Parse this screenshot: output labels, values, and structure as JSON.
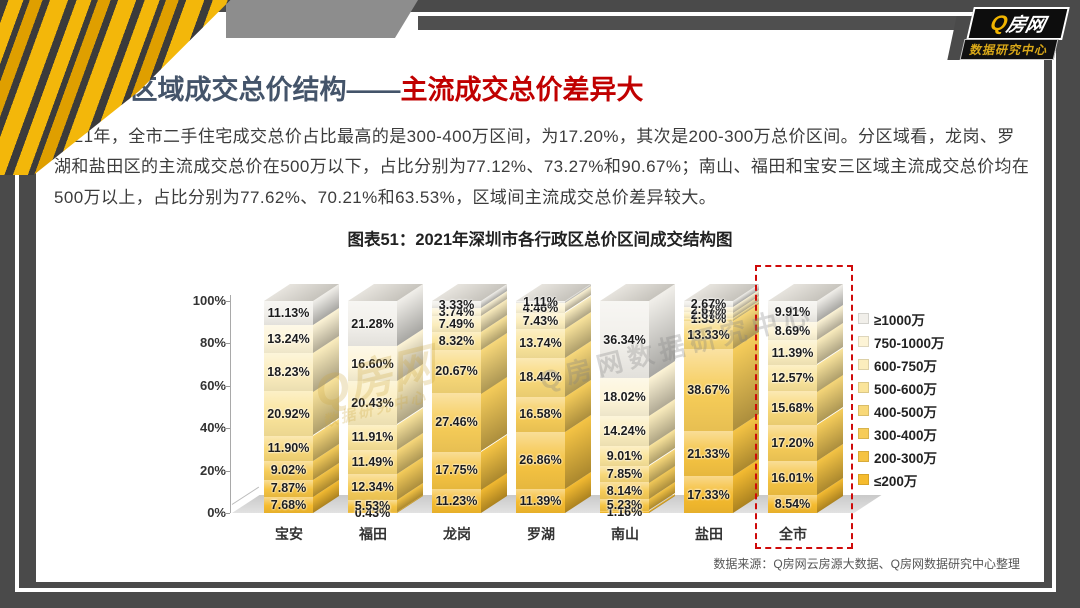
{
  "logo": {
    "q": "Q",
    "rest": "房网",
    "subtitle": "数据研究中心"
  },
  "header": {
    "title_dark": "4.8各区域成交总价结构——",
    "title_red": "主流成交总价差异大"
  },
  "paragraph": "2021年，全市二手住宅成交总价占比最高的是300-400万区间，为17.20%，其次是200-300万总价区间。分区域看，龙岗、罗湖和盐田区的主流成交总价在500万以下，占比分别为77.12%、73.27%和90.67%；南山、福田和宝安三区域主流成交总价均在500万以上，占比分别为77.62%、70.21%和63.53%，区域间主流成交总价差异较大。",
  "chart_data": {
    "type": "bar",
    "stacked": true,
    "title": "图表51：2021年深圳市各行政区总价区间成交结构图",
    "categories": [
      "宝安",
      "福田",
      "龙岗",
      "罗湖",
      "南山",
      "盐田",
      "全市"
    ],
    "series": [
      {
        "name": "≤200万",
        "color": "#f5bb2e",
        "values": [
          7.68,
          0.43,
          11.23,
          11.39,
          1.16,
          17.33,
          8.54
        ]
      },
      {
        "name": "200-300万",
        "color": "#f5c342",
        "values": [
          7.87,
          5.53,
          17.75,
          26.86,
          5.23,
          21.33,
          16.01
        ]
      },
      {
        "name": "300-400万",
        "color": "#f6cc58",
        "values": [
          9.02,
          12.34,
          27.46,
          16.58,
          8.14,
          38.67,
          17.2
        ]
      },
      {
        "name": "400-500万",
        "color": "#f8d878",
        "values": [
          11.9,
          11.49,
          20.67,
          18.44,
          7.85,
          13.33,
          15.68
        ]
      },
      {
        "name": "500-600万",
        "color": "#fae49a",
        "values": [
          20.92,
          11.91,
          8.32,
          13.74,
          9.01,
          1.33,
          12.57
        ]
      },
      {
        "name": "600-750万",
        "color": "#fbedbd",
        "values": [
          18.23,
          20.43,
          7.49,
          7.43,
          14.24,
          2.67,
          11.39
        ]
      },
      {
        "name": "750-1000万",
        "color": "#fdf4d6",
        "values": [
          13.24,
          16.6,
          3.74,
          4.46,
          18.02,
          2.67,
          8.69
        ]
      },
      {
        "name": "≥1000万",
        "color": "#f1efea",
        "values": [
          11.13,
          21.28,
          3.33,
          1.11,
          36.34,
          2.67,
          9.91
        ]
      }
    ],
    "y_ticks": [
      "100%",
      "80%",
      "60%",
      "40%",
      "20%",
      "0%"
    ],
    "ylim": [
      0,
      100
    ],
    "legend_position": "right",
    "legend_order": "top-to-bottom reversed series",
    "highlight_category": "全市",
    "highlight_color": "#cf0a0a"
  },
  "watermark": {
    "brand": "Q房网",
    "brand_sub": "数据研究中心",
    "right_text": "Q房网数据研究中心"
  },
  "footer": {
    "source": "数据来源：Q房网云房源大数据、Q房网数据研究中心整理"
  }
}
